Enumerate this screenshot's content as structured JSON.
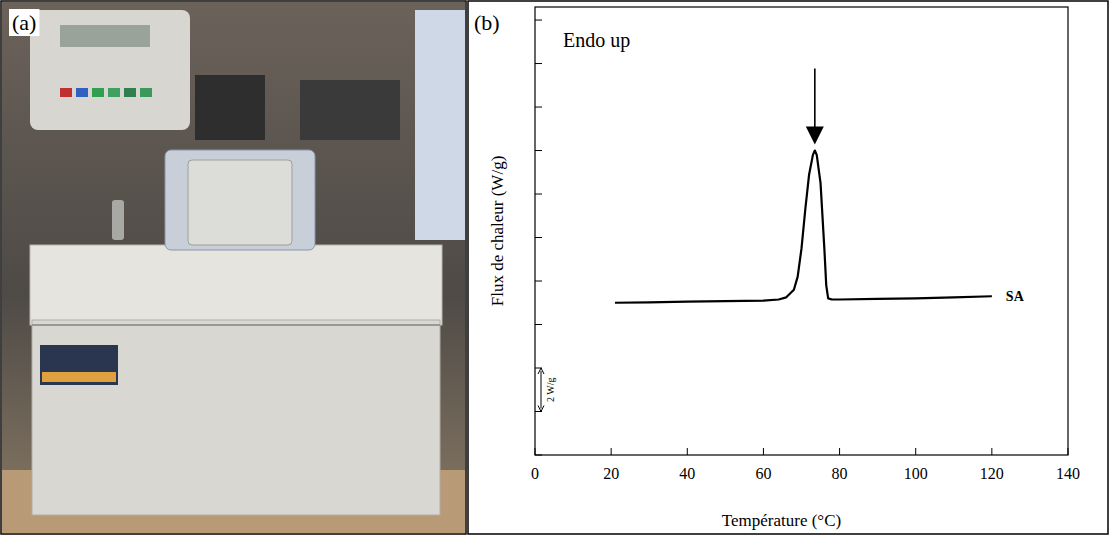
{
  "photo": {
    "label": "(a)"
  },
  "chart_data": {
    "type": "line",
    "panel_label": "(b)",
    "x_label": "Température (°C)",
    "y_label": "Flux de chaleur (W/g)",
    "annotations": [
      {
        "text": "Endo up"
      }
    ],
    "scale_bar": {
      "start": 2,
      "value": 2,
      "label": "2 W/g"
    },
    "x": [
      21,
      30,
      40,
      50,
      60,
      64,
      66,
      68,
      69,
      70,
      71,
      72,
      73,
      73.5,
      74,
      75,
      76,
      76.5,
      77,
      78,
      80,
      90,
      100,
      110,
      120
    ],
    "series": [
      {
        "name": "SA",
        "color": "#000000",
        "values": [
          7.0,
          7.02,
          7.05,
          7.08,
          7.1,
          7.15,
          7.25,
          7.6,
          8.2,
          9.5,
          11.3,
          12.9,
          13.8,
          14.0,
          13.8,
          12.5,
          9.5,
          7.8,
          7.2,
          7.15,
          7.15,
          7.18,
          7.2,
          7.25,
          7.3
        ]
      }
    ],
    "xlim": [
      0,
      140
    ],
    "xticks": [
      0,
      20,
      40,
      60,
      80,
      100,
      120,
      140
    ],
    "ylim": [
      0,
      20.6
    ],
    "yticks": [
      0,
      2,
      4,
      6,
      8,
      10,
      12,
      14,
      16,
      18,
      20
    ],
    "tick_labels": "x",
    "grid": false
  }
}
